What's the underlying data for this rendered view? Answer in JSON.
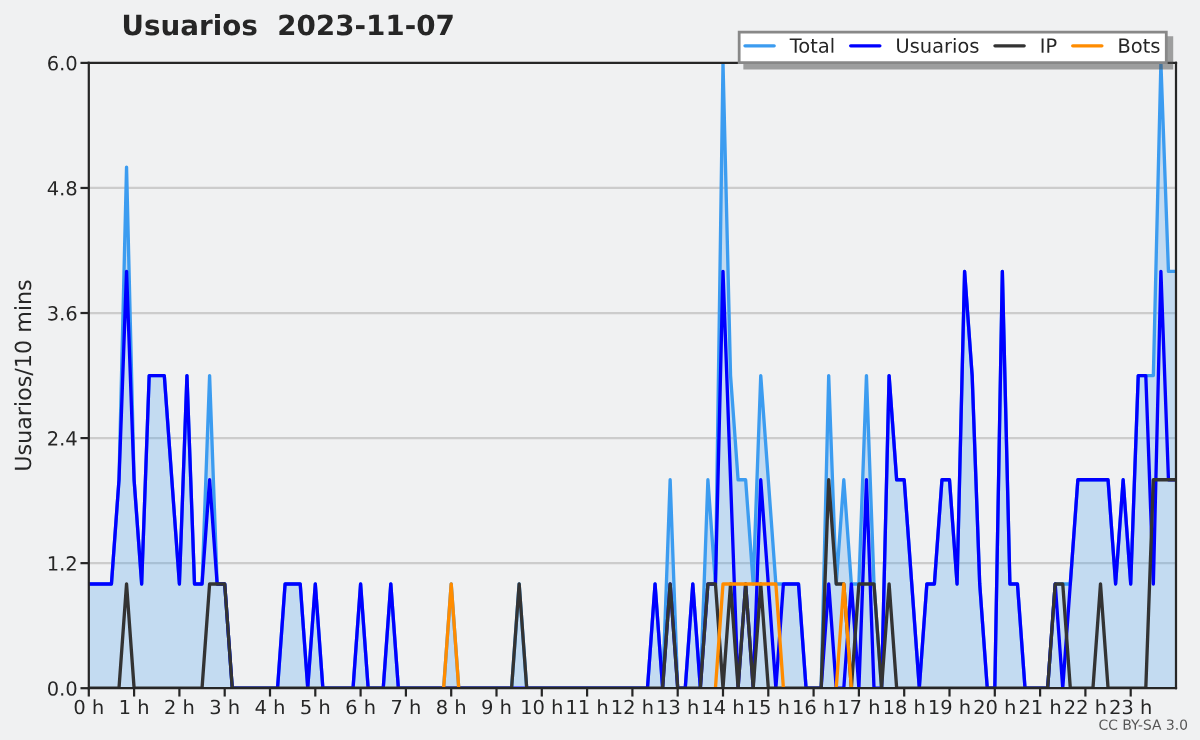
{
  "chart_data": {
    "type": "line",
    "title": "Usuarios  2023-11-07",
    "ylabel": "Usuarios/10 mins",
    "annotations": [
      "CC BY-SA 3.0"
    ],
    "x": [
      0,
      0.1667,
      0.3333,
      0.5,
      0.6667,
      0.8333,
      1,
      1.1667,
      1.3333,
      1.5,
      1.6667,
      1.8333,
      2,
      2.1667,
      2.3333,
      2.5,
      2.6667,
      2.8333,
      3,
      3.1667,
      3.3333,
      3.5,
      3.6667,
      3.8333,
      4,
      4.1667,
      4.3333,
      4.5,
      4.6667,
      4.8333,
      5,
      5.1667,
      5.3333,
      5.5,
      5.6667,
      5.8333,
      6,
      6.1667,
      6.3333,
      6.5,
      6.6667,
      6.8333,
      7,
      7.1667,
      7.3333,
      7.5,
      7.6667,
      7.8333,
      8,
      8.1667,
      8.3333,
      8.5,
      8.6667,
      8.8333,
      9,
      9.1667,
      9.3333,
      9.5,
      9.6667,
      9.8333,
      10,
      10.1667,
      10.3333,
      10.5,
      10.6667,
      10.8333,
      11,
      11.1667,
      11.3333,
      11.5,
      11.6667,
      11.8333,
      12,
      12.1667,
      12.3333,
      12.5,
      12.6667,
      12.8333,
      13,
      13.1667,
      13.3333,
      13.5,
      13.6667,
      13.8333,
      14,
      14.1667,
      14.3333,
      14.5,
      14.6667,
      14.8333,
      15,
      15.1667,
      15.3333,
      15.5,
      15.6667,
      15.8333,
      16,
      16.1667,
      16.3333,
      16.5,
      16.6667,
      16.8333,
      17,
      17.1667,
      17.3333,
      17.5,
      17.6667,
      17.8333,
      18,
      18.1667,
      18.3333,
      18.5,
      18.6667,
      18.8333,
      19,
      19.1667,
      19.3333,
      19.5,
      19.6667,
      19.8333,
      20,
      20.1667,
      20.3333,
      20.5,
      20.6667,
      20.8333,
      21,
      21.1667,
      21.3333,
      21.5,
      21.6667,
      21.8333,
      22,
      22.1667,
      22.3333,
      22.5,
      22.6667,
      22.8333,
      23,
      23.1667,
      23.3333,
      23.5,
      23.6667,
      23.8333,
      24
    ],
    "series": [
      {
        "name": "Total",
        "type": "area",
        "color": "#3c9cf0",
        "values": [
          1,
          1,
          1,
          1,
          2,
          5,
          2,
          1,
          3,
          3,
          3,
          2,
          1,
          3,
          1,
          1,
          3,
          1,
          1,
          0,
          0,
          0,
          0,
          0,
          0,
          0,
          1,
          1,
          1,
          0,
          1,
          0,
          0,
          0,
          0,
          0,
          1,
          0,
          0,
          0,
          1,
          0,
          0,
          0,
          0,
          0,
          0,
          0,
          1,
          0,
          0,
          0,
          0,
          0,
          0,
          0,
          0,
          1,
          0,
          0,
          0,
          0,
          0,
          0,
          0,
          0,
          0,
          0,
          0,
          0,
          0,
          0,
          0,
          0,
          0,
          1,
          0,
          2,
          0,
          0,
          1,
          0,
          2,
          1,
          6,
          3,
          2,
          2,
          1,
          3,
          2,
          1,
          1,
          1,
          1,
          0,
          0,
          0,
          3,
          1,
          2,
          1,
          1,
          3,
          1,
          0,
          3,
          2,
          2,
          1,
          0,
          1,
          1,
          2,
          2,
          1,
          4,
          3,
          1,
          0,
          0,
          4,
          1,
          1,
          0,
          0,
          0,
          0,
          1,
          1,
          1,
          2,
          2,
          2,
          2,
          2,
          1,
          2,
          1,
          3,
          3,
          3,
          6,
          4,
          4
        ]
      },
      {
        "name": "Usuarios",
        "color": "#0000ff",
        "values": [
          1,
          1,
          1,
          1,
          2,
          4,
          2,
          1,
          3,
          3,
          3,
          2,
          1,
          3,
          1,
          1,
          2,
          1,
          1,
          0,
          0,
          0,
          0,
          0,
          0,
          0,
          1,
          1,
          1,
          0,
          1,
          0,
          0,
          0,
          0,
          0,
          1,
          0,
          0,
          0,
          1,
          0,
          0,
          0,
          0,
          0,
          0,
          0,
          0,
          0,
          0,
          0,
          0,
          0,
          0,
          0,
          0,
          0,
          0,
          0,
          0,
          0,
          0,
          0,
          0,
          0,
          0,
          0,
          0,
          0,
          0,
          0,
          0,
          0,
          0,
          1,
          0,
          1,
          0,
          0,
          1,
          0,
          1,
          1,
          4,
          2,
          0,
          1,
          0,
          2,
          1,
          0,
          1,
          1,
          1,
          0,
          0,
          0,
          1,
          0,
          0,
          1,
          0,
          2,
          0,
          0,
          3,
          2,
          2,
          1,
          0,
          1,
          1,
          2,
          2,
          1,
          4,
          3,
          1,
          0,
          0,
          4,
          1,
          1,
          0,
          0,
          0,
          0,
          1,
          0,
          1,
          2,
          2,
          2,
          2,
          2,
          1,
          2,
          1,
          3,
          3,
          1,
          4,
          2,
          2
        ]
      },
      {
        "name": "IP",
        "color": "#333333",
        "values": [
          0,
          0,
          0,
          0,
          0,
          1,
          0,
          0,
          0,
          0,
          0,
          0,
          0,
          0,
          0,
          0,
          1,
          1,
          1,
          0,
          0,
          0,
          0,
          0,
          0,
          0,
          0,
          0,
          0,
          0,
          0,
          0,
          0,
          0,
          0,
          0,
          0,
          0,
          0,
          0,
          0,
          0,
          0,
          0,
          0,
          0,
          0,
          0,
          0,
          0,
          0,
          0,
          0,
          0,
          0,
          0,
          0,
          1,
          0,
          0,
          0,
          0,
          0,
          0,
          0,
          0,
          0,
          0,
          0,
          0,
          0,
          0,
          0,
          0,
          0,
          0,
          0,
          1,
          0,
          0,
          0,
          0,
          1,
          1,
          0,
          1,
          0,
          1,
          0,
          1,
          0,
          0,
          0,
          0,
          0,
          0,
          0,
          0,
          2,
          1,
          1,
          0,
          1,
          1,
          1,
          0,
          1,
          0,
          0,
          0,
          0,
          0,
          0,
          0,
          0,
          0,
          0,
          0,
          0,
          0,
          0,
          0,
          0,
          0,
          0,
          0,
          0,
          0,
          1,
          1,
          0,
          0,
          0,
          0,
          1,
          0,
          0,
          0,
          0,
          0,
          0,
          2,
          2,
          2,
          2
        ]
      },
      {
        "name": "Bots",
        "color": "#ff8c00",
        "x": [
          7.8333,
          8,
          8.1667,
          8.3333,
          13.8333,
          14,
          14.1667,
          14.3333,
          14.5,
          14.6667,
          14.8333,
          15,
          15.1667,
          15.3333,
          15.5,
          16.5,
          16.6667,
          16.8333
        ],
        "values": [
          0,
          1,
          0,
          null,
          0,
          1,
          1,
          1,
          1,
          1,
          1,
          1,
          1,
          0,
          null,
          0,
          1,
          0
        ]
      }
    ],
    "xlim": [
      0,
      24
    ],
    "xticks": [
      {
        "value": 0,
        "label": "0 h"
      },
      {
        "value": 1,
        "label": "1 h"
      },
      {
        "value": 2,
        "label": "2 h"
      },
      {
        "value": 3,
        "label": "3 h"
      },
      {
        "value": 4,
        "label": "4 h"
      },
      {
        "value": 5,
        "label": "5 h"
      },
      {
        "value": 6,
        "label": "6 h"
      },
      {
        "value": 7,
        "label": "7 h"
      },
      {
        "value": 8,
        "label": "8 h"
      },
      {
        "value": 9,
        "label": "9 h"
      },
      {
        "value": 10,
        "label": "10 h"
      },
      {
        "value": 11,
        "label": "11 h"
      },
      {
        "value": 12,
        "label": "12 h"
      },
      {
        "value": 13,
        "label": "13 h"
      },
      {
        "value": 14,
        "label": "14 h"
      },
      {
        "value": 15,
        "label": "15 h"
      },
      {
        "value": 16,
        "label": "16 h"
      },
      {
        "value": 17,
        "label": "17 h"
      },
      {
        "value": 18,
        "label": "18 h"
      },
      {
        "value": 19,
        "label": "19 h"
      },
      {
        "value": 20,
        "label": "20 h"
      },
      {
        "value": 21,
        "label": "21 h"
      },
      {
        "value": 22,
        "label": "22 h"
      },
      {
        "value": 23,
        "label": "23 h"
      }
    ],
    "ylim": [
      0,
      6
    ],
    "yticks": [
      {
        "value": 0,
        "label": "0.0"
      },
      {
        "value": 1.2,
        "label": "1.2"
      },
      {
        "value": 2.4,
        "label": "2.4"
      },
      {
        "value": 3.6,
        "label": "3.6"
      },
      {
        "value": 4.8,
        "label": "4.8"
      },
      {
        "value": 6,
        "label": "6.0"
      }
    ],
    "grid": "y",
    "legend": "top right"
  }
}
